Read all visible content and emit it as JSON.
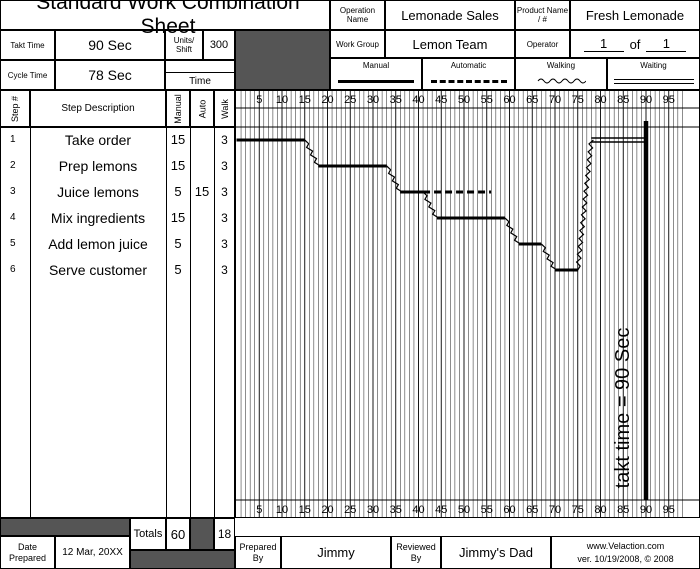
{
  "header": {
    "title": "Standard Work Combination Sheet",
    "operation_label": "Operation Name",
    "operation_value": "Lemonade Sales",
    "product_label": "Product Name / #",
    "product_value": "Fresh Lemonade",
    "takt_label": "Takt Time",
    "takt_value": "90 Sec",
    "units_label": "Units/ Shift",
    "units_value": "300",
    "cycle_label": "Cycle Time",
    "cycle_value": "78 Sec",
    "time_label": "Time",
    "workgroup_label": "Work Group",
    "workgroup_value": "Lemon Team",
    "operator_label": "Operator",
    "operator_num": "1",
    "operator_of": "of",
    "operator_total": "1"
  },
  "legend": {
    "manual": "Manual",
    "automatic": "Automatic",
    "walking": "Walking",
    "waiting": "Waiting"
  },
  "columns": {
    "step": "Step #",
    "description": "Step Description",
    "manual": "Manual",
    "auto": "Auto",
    "walk": "Walk"
  },
  "steps": [
    {
      "num": "1",
      "desc": "Take order",
      "manual": "15",
      "auto": "",
      "walk": "3"
    },
    {
      "num": "2",
      "desc": "Prep lemons",
      "manual": "15",
      "auto": "",
      "walk": "3"
    },
    {
      "num": "3",
      "desc": "Juice lemons",
      "manual": "5",
      "auto": "15",
      "walk": "3"
    },
    {
      "num": "4",
      "desc": "Mix ingredients",
      "manual": "15",
      "auto": "",
      "walk": "3"
    },
    {
      "num": "5",
      "desc": "Add lemon juice",
      "manual": "5",
      "auto": "",
      "walk": "3"
    },
    {
      "num": "6",
      "desc": "Serve customer",
      "manual": "5",
      "auto": "",
      "walk": "3"
    }
  ],
  "totals": {
    "label": "Totals",
    "manual": "60",
    "walk": "18"
  },
  "chart_data": {
    "type": "gantt",
    "axis_ticks": [
      "5",
      "10",
      "15",
      "20",
      "25",
      "30",
      "35",
      "40",
      "45",
      "50",
      "55",
      "60",
      "65",
      "70",
      "75",
      "80",
      "85",
      "90",
      "95"
    ],
    "xlim": [
      0,
      98
    ],
    "takt": 90,
    "takt_label": "takt time = 90 Sec",
    "manual_segments": [
      {
        "step": 1,
        "start": 0,
        "end": 15
      },
      {
        "step": 2,
        "start": 18,
        "end": 33
      },
      {
        "step": 3,
        "start": 36,
        "end": 41
      },
      {
        "step": 4,
        "start": 44,
        "end": 59
      },
      {
        "step": 5,
        "start": 62,
        "end": 67
      },
      {
        "step": 6,
        "start": 70,
        "end": 75
      }
    ],
    "auto_segments": [
      {
        "step": 3,
        "start": 41,
        "end": 56
      }
    ],
    "walk_segments": [
      {
        "from_step": 1,
        "to_step": 2,
        "start": 15,
        "end": 18
      },
      {
        "from_step": 2,
        "to_step": 3,
        "start": 33,
        "end": 36
      },
      {
        "from_step": 3,
        "to_step": 4,
        "start": 41,
        "end": 44
      },
      {
        "from_step": 4,
        "to_step": 5,
        "start": 59,
        "end": 62
      },
      {
        "from_step": 5,
        "to_step": 6,
        "start": 67,
        "end": 70
      },
      {
        "from_step": 6,
        "to_step": 1,
        "start": 75,
        "end": 78
      }
    ],
    "waiting_segments": [
      {
        "step": 1,
        "start": 78,
        "end": 90
      }
    ]
  },
  "footer": {
    "date_label": "Date Prepared",
    "date_value": "12 Mar, 20XX",
    "prepared_label": "Prepared By",
    "prepared_value": "Jimmy",
    "reviewed_label": "Reviewed By",
    "reviewed_value": "Jimmy's Dad",
    "site": "www.Velaction.com",
    "version": "ver. 10/19/2008, © 2008"
  }
}
